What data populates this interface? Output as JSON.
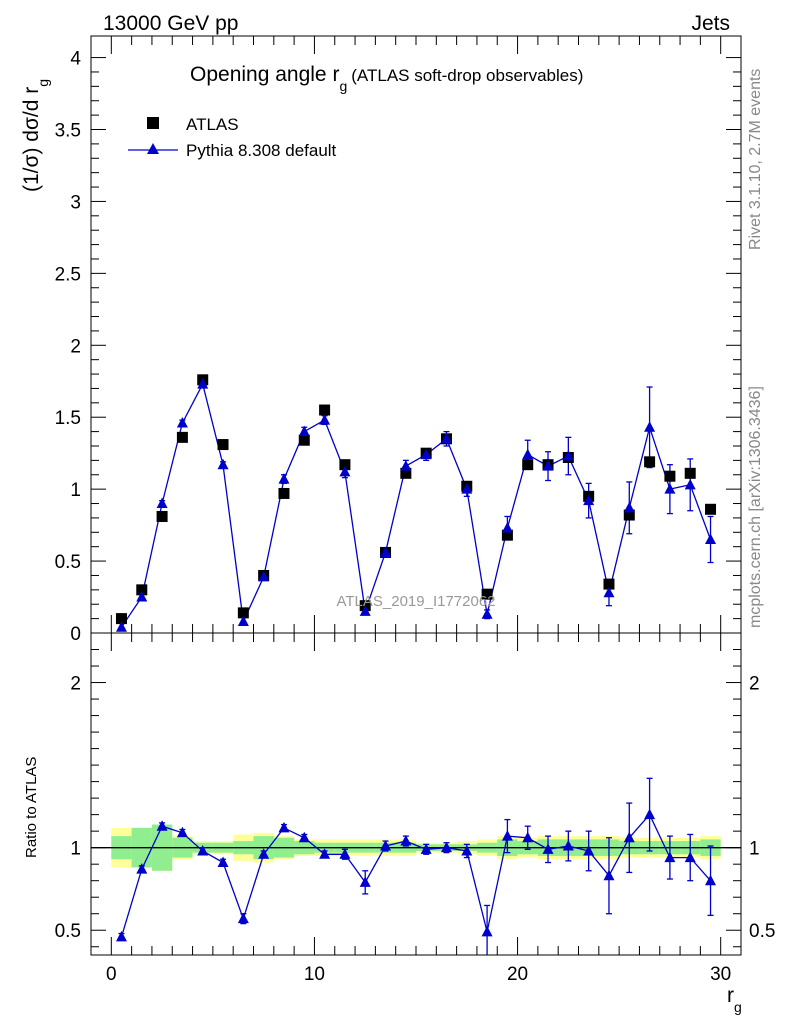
{
  "header": {
    "left": "13000 GeV pp",
    "right": "Jets",
    "side_top": "Rivet 3.1.10,  2.7M events",
    "side_bottom": "mcplots.cern.ch [arXiv:1306.3436]",
    "watermark": "ATLAS_2019_I1772062"
  },
  "chart_data": [
    {
      "type": "scatter",
      "title_main": "Opening angle r",
      "title_sub": "g",
      "title_suffix": "(ATLAS soft-drop observables)",
      "ylabel": "(1/σ) dσ/d r",
      "ylabel_sub": "g",
      "xlim": [
        -1,
        31
      ],
      "ylim": [
        0,
        4.15
      ],
      "yticks": [
        "0",
        "0.5",
        "1",
        "1.5",
        "2",
        "2.5",
        "3",
        "3.5",
        "4"
      ],
      "legend_placement": "top-left",
      "x": [
        0.5,
        1.5,
        2.5,
        3.5,
        4.5,
        5.5,
        6.5,
        7.5,
        8.5,
        9.5,
        10.5,
        11.5,
        12.5,
        13.5,
        14.5,
        15.5,
        16.5,
        17.5,
        18.5,
        19.5,
        20.5,
        21.5,
        22.5,
        23.5,
        24.5,
        25.5,
        26.5,
        27.5,
        28.5,
        29.5
      ],
      "series": [
        {
          "name": "ATLAS",
          "marker": "square",
          "color": "#000000",
          "values": [
            0.1,
            0.3,
            0.81,
            1.36,
            1.76,
            1.31,
            0.14,
            0.4,
            0.97,
            1.34,
            1.55,
            1.17,
            0.19,
            0.56,
            1.11,
            1.25,
            1.35,
            1.02,
            0.27,
            0.68,
            1.17,
            1.17,
            1.22,
            0.95,
            0.34,
            0.82,
            1.19,
            1.09,
            1.11,
            0.86
          ]
        },
        {
          "name": "Pythia 8.308 default",
          "marker": "triangle",
          "color": "#0000cc",
          "values": [
            0.04,
            0.25,
            0.9,
            1.46,
            1.73,
            1.17,
            0.08,
            0.39,
            1.07,
            1.4,
            1.48,
            1.12,
            0.15,
            0.56,
            1.16,
            1.24,
            1.35,
            1.0,
            0.13,
            0.73,
            1.24,
            1.16,
            1.23,
            0.92,
            0.28,
            0.87,
            1.43,
            1.0,
            1.03,
            0.65
          ],
          "errors": [
            0.01,
            0.01,
            0.02,
            0.02,
            0.02,
            0.02,
            0.01,
            0.02,
            0.03,
            0.03,
            0.03,
            0.04,
            0.02,
            0.03,
            0.04,
            0.04,
            0.05,
            0.05,
            0.03,
            0.08,
            0.1,
            0.1,
            0.13,
            0.12,
            0.09,
            0.18,
            0.28,
            0.17,
            0.18,
            0.16
          ]
        }
      ]
    },
    {
      "type": "scatter",
      "ylabel": "Ratio to ATLAS",
      "xlabel": "r",
      "xlabel_sub": "g",
      "xlim": [
        -1,
        31
      ],
      "ylim": [
        0.35,
        2.3
      ],
      "xticks": [
        "0",
        "10",
        "20",
        "30"
      ],
      "yticks": [
        "0.5",
        "1",
        "2"
      ],
      "band_inner_color": "#90ee90",
      "band_outer_color": "#ffff99",
      "band_inner": [
        0.07,
        0.12,
        0.14,
        0.06,
        0.03,
        0.03,
        0.04,
        0.07,
        0.06,
        0.04,
        0.03,
        0.03,
        0.03,
        0.03,
        0.03,
        0.02,
        0.02,
        0.02,
        0.03,
        0.05,
        0.04,
        0.05,
        0.05,
        0.05,
        0.05,
        0.04,
        0.04,
        0.04,
        0.04,
        0.05
      ],
      "band_outer": [
        0.12,
        0.12,
        0.14,
        0.07,
        0.04,
        0.04,
        0.08,
        0.09,
        0.07,
        0.05,
        0.05,
        0.05,
        0.05,
        0.05,
        0.05,
        0.03,
        0.03,
        0.04,
        0.05,
        0.07,
        0.06,
        0.07,
        0.07,
        0.07,
        0.07,
        0.06,
        0.06,
        0.06,
        0.06,
        0.07
      ],
      "series": [
        {
          "name": "Pythia 8.308 default",
          "color": "#0000cc",
          "values": [
            0.46,
            0.87,
            1.13,
            1.09,
            0.98,
            0.91,
            0.57,
            0.96,
            1.12,
            1.06,
            0.96,
            0.96,
            0.79,
            1.01,
            1.04,
            0.99,
            1.0,
            0.98,
            0.49,
            1.07,
            1.06,
            0.99,
            1.01,
            0.98,
            0.83,
            1.06,
            1.2,
            0.94,
            0.94,
            0.8
          ],
          "errors": [
            0.02,
            0.02,
            0.02,
            0.02,
            0.02,
            0.02,
            0.03,
            0.02,
            0.02,
            0.02,
            0.02,
            0.03,
            0.07,
            0.03,
            0.03,
            0.03,
            0.03,
            0.04,
            0.16,
            0.1,
            0.07,
            0.08,
            0.09,
            0.12,
            0.23,
            0.21,
            0.22,
            0.13,
            0.14,
            0.21
          ]
        }
      ]
    }
  ]
}
